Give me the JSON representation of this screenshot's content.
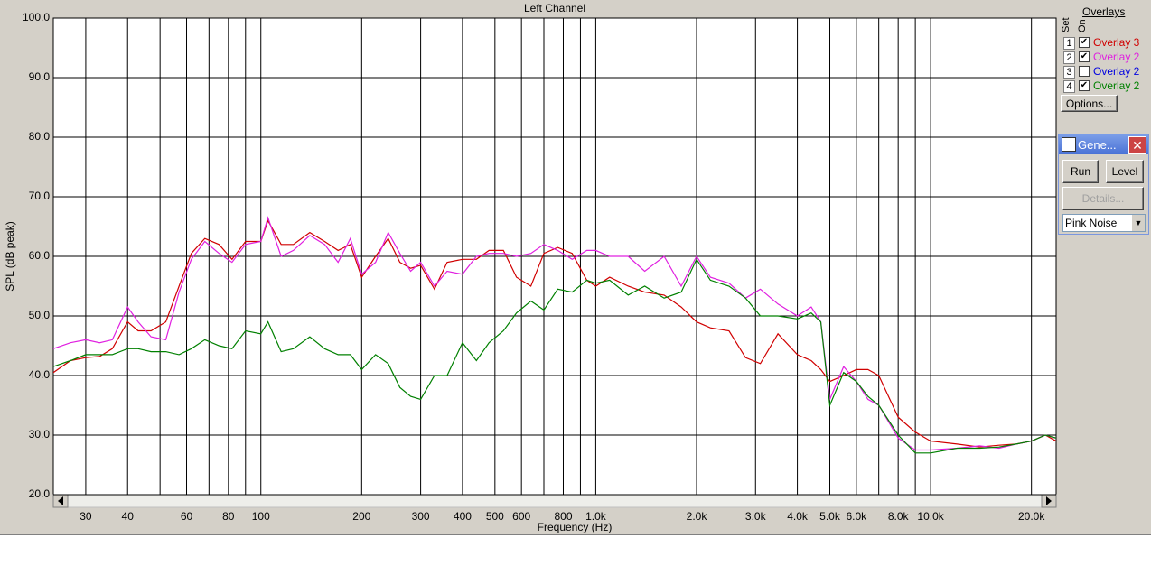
{
  "chart_data": {
    "type": "line",
    "title": "Left Channel",
    "y_label": "SPL (dB peak)",
    "x_label": "Frequency (Hz)",
    "log_x": true,
    "grid": true,
    "xlim": [
      24,
      23700
    ],
    "ylim": [
      20,
      100
    ],
    "yticks": [
      {
        "value": 20,
        "label": "20.0"
      },
      {
        "value": 30,
        "label": "30.0"
      },
      {
        "value": 40,
        "label": "40.0"
      },
      {
        "value": 50,
        "label": "50.0"
      },
      {
        "value": 60,
        "label": "60.0"
      },
      {
        "value": 70,
        "label": "70.0"
      },
      {
        "value": 80,
        "label": "80.0"
      },
      {
        "value": 90,
        "label": "90.0"
      },
      {
        "value": 100,
        "label": "100.0"
      }
    ],
    "xticks": [
      30,
      40,
      60,
      80,
      100,
      200,
      300,
      400,
      500,
      600,
      800,
      {
        "value": 1000,
        "label": "1.0k"
      },
      {
        "value": 2000,
        "label": "2.0k"
      },
      {
        "value": 3000,
        "label": "3.0k"
      },
      {
        "value": 4000,
        "label": "4.0k"
      },
      {
        "value": 5000,
        "label": "5.0k"
      },
      {
        "value": 6000,
        "label": "6.0k"
      },
      {
        "value": 8000,
        "label": "8.0k"
      },
      {
        "value": 10000,
        "label": "10.0k"
      },
      {
        "value": 20000,
        "label": "20.0k"
      }
    ],
    "x_minor_gridlines": [
      50,
      70,
      90,
      700,
      900,
      7000,
      9000
    ],
    "x": [
      24,
      27,
      30,
      33,
      36,
      40,
      43,
      47,
      52,
      57,
      62,
      68,
      75,
      82,
      90,
      100,
      105,
      115,
      125,
      140,
      155,
      170,
      185,
      200,
      220,
      240,
      260,
      280,
      300,
      330,
      360,
      400,
      440,
      480,
      530,
      580,
      640,
      700,
      770,
      850,
      940,
      1000,
      1100,
      1250,
      1400,
      1600,
      1800,
      2000,
      2200,
      2500,
      2800,
      3100,
      3500,
      4000,
      4400,
      4700,
      5000,
      5500,
      6000,
      6500,
      7000,
      8000,
      9000,
      10000,
      12000,
      14000,
      16000,
      18000,
      20000,
      22000,
      23700
    ],
    "series": [
      {
        "name": "Overlay 3",
        "set": "1",
        "on": true,
        "color": "#d00000",
        "values": [
          40.5,
          42.5,
          43,
          43.2,
          44.5,
          49,
          47.5,
          47.5,
          49,
          55,
          60.5,
          63,
          62,
          59.5,
          62.5,
          62.5,
          66,
          62,
          62,
          64,
          62.5,
          61,
          62,
          56.5,
          60,
          63,
          59,
          58,
          58.5,
          54.5,
          59,
          59.5,
          59.5,
          61,
          61,
          56.5,
          55,
          60.5,
          61.5,
          60.5,
          56,
          55,
          56.5,
          55,
          54,
          53.5,
          51.5,
          49,
          48,
          47.5,
          43,
          42,
          47,
          43.5,
          42.5,
          41,
          39,
          40,
          41,
          41,
          40,
          33,
          30.5,
          29,
          28.5,
          28,
          28.3,
          28.5,
          29,
          30,
          29
        ]
      },
      {
        "name": "Overlay 2",
        "set": "2",
        "on": true,
        "color": "#e020e0",
        "values": [
          44.5,
          45.5,
          46,
          45.5,
          46,
          51.5,
          49,
          46.5,
          46,
          54,
          59.5,
          62.5,
          60.5,
          59,
          62,
          62.5,
          66.5,
          60,
          61,
          63.5,
          62,
          59,
          63,
          57,
          59,
          64,
          60.5,
          57.5,
          59,
          55,
          57.5,
          57,
          60,
          60.5,
          60.5,
          60,
          60.5,
          62,
          61,
          59.5,
          61,
          61,
          60,
          60,
          57.5,
          60,
          55,
          60,
          56.5,
          55.5,
          53,
          54.5,
          52,
          50,
          51.5,
          49,
          36,
          41.5,
          39,
          36,
          35,
          29.5,
          27.5,
          27.5,
          27.8,
          28.2,
          27.8,
          28.5,
          29,
          30,
          29.5
        ]
      },
      {
        "name": "Overlay 2",
        "set": "3",
        "on": false,
        "color": "#0000e0"
      },
      {
        "name": "Overlay 2",
        "set": "4",
        "on": true,
        "color": "#008000",
        "values": [
          41.5,
          42.5,
          43.5,
          43.5,
          43.5,
          44.5,
          44.5,
          44,
          44,
          43.5,
          44.5,
          46,
          45,
          44.5,
          47.5,
          47,
          49,
          44,
          44.5,
          46.5,
          44.5,
          43.5,
          43.5,
          41,
          43.5,
          42,
          38,
          36.5,
          36,
          40,
          40,
          45.5,
          42.5,
          45.5,
          47.5,
          50.5,
          52.5,
          51,
          54.5,
          54,
          56,
          55.5,
          56,
          53.5,
          55,
          53,
          54,
          59.5,
          56,
          55,
          53,
          50,
          50,
          49.5,
          50.5,
          49,
          35,
          40.5,
          39,
          36.5,
          35,
          30,
          27,
          27,
          27.8,
          27.8,
          28,
          28.5,
          29,
          30,
          29.5
        ]
      }
    ]
  },
  "panel": {
    "title": "Overlays",
    "set_header": "Set",
    "on_header": "On",
    "options_button": "Options..."
  },
  "generator": {
    "title": "Gene...",
    "run_button": "Run",
    "level_button": "Level",
    "details_button": "Details...",
    "signal": "Pink Noise"
  }
}
